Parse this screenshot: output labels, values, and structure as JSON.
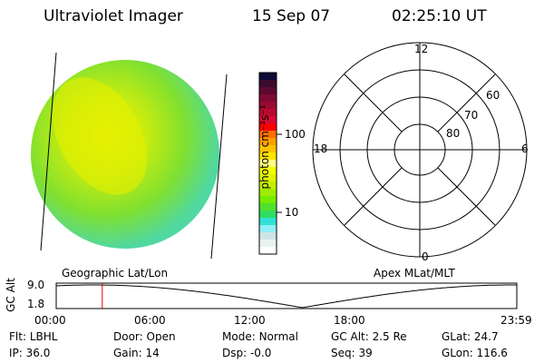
{
  "header": {
    "instrument": "Ultraviolet Imager",
    "date": "15 Sep 07",
    "time": "02:25:10 UT"
  },
  "colorbar": {
    "label": "photon cm⁻²s⁻¹",
    "ticks": [
      "100",
      "10"
    ],
    "colors": [
      "#0b0b35",
      "#3a0b2c",
      "#5a0a32",
      "#7e0a34",
      "#9a0a30",
      "#b80a30",
      "#d80a30",
      "#ff0000",
      "#ff7000",
      "#ffa000",
      "#ffc400",
      "#ffe400",
      "#ffff80",
      "#f4ff00",
      "#e0f400",
      "#c4f000",
      "#a0ec00",
      "#74ec00",
      "#50e030",
      "#30dc60",
      "#30e0d8",
      "#90f0f4",
      "#d0e4e4",
      "#e8f4ee",
      "#ffffff"
    ]
  },
  "polar": {
    "mlt_labels": [
      "12",
      "18",
      "6",
      "0"
    ],
    "lat_labels": [
      "60",
      "70",
      "80"
    ]
  },
  "altitude_plot": {
    "left_label": "Geographic Lat/Lon",
    "right_label": "Apex MLat/MLT",
    "ylabel": "GC Alt",
    "yticks": [
      "9.0",
      "1.8"
    ],
    "xticks": [
      "00:00",
      "06:00",
      "12:00",
      "18:00",
      "23:59"
    ],
    "current_time_fraction": 0.1
  },
  "status": [
    {
      "k": "Flt:",
      "v": "LBHL"
    },
    {
      "k": "Door:",
      "v": "Open"
    },
    {
      "k": "Mode:",
      "v": "Normal"
    },
    {
      "k": "GC Alt:",
      "v": "2.5 Re"
    },
    {
      "k": "GLat:",
      "v": "24.7"
    },
    {
      "k": "IP:",
      "v": "36.0"
    },
    {
      "k": "Gain:",
      "v": "14"
    },
    {
      "k": "Dsp:",
      "v": "-0.0"
    },
    {
      "k": "Seq:",
      "v": "39"
    },
    {
      "k": "GLon:",
      "v": "116.6"
    }
  ]
}
